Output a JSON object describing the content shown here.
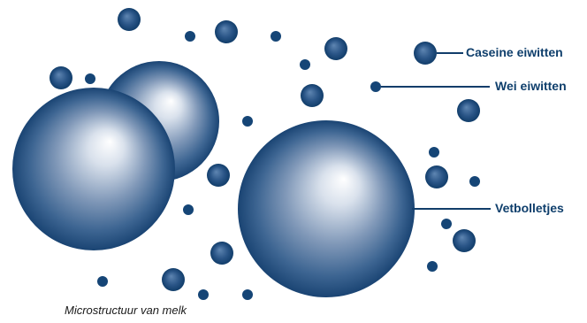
{
  "legend": {
    "casein": "Caseine eiwitten",
    "whey": "Wei eiwitten",
    "fat": "Vetbolletjes"
  },
  "caption": "Microstructuur van melk",
  "colors": {
    "dark_blue": "#113d6a",
    "mid_blue": "#3d6592",
    "highlight": "#ffffff"
  }
}
